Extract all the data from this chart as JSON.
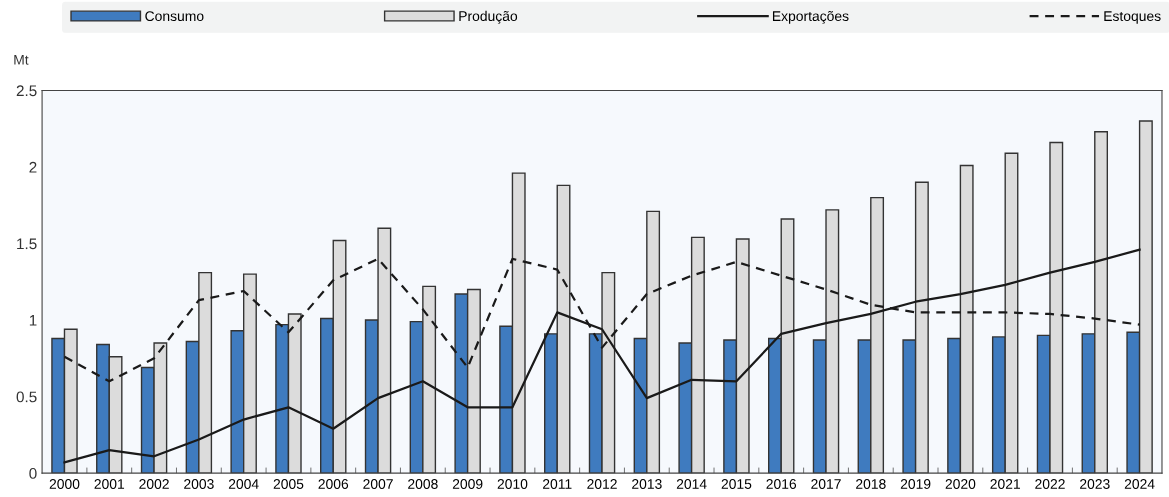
{
  "chart_data": {
    "type": "bar",
    "ylabel": "Mt",
    "categories": [
      "2000",
      "2001",
      "2002",
      "2003",
      "2004",
      "2005",
      "2006",
      "2007",
      "2008",
      "2009",
      "2010",
      "2011",
      "2012",
      "2013",
      "2014",
      "2015",
      "2016",
      "2017",
      "2018",
      "2019",
      "2020",
      "2021",
      "2022",
      "2023",
      "2024"
    ],
    "series": [
      {
        "name": "Consumo",
        "color": "#3f7bbf",
        "values": [
          0.88,
          0.84,
          0.69,
          0.86,
          0.93,
          0.97,
          1.01,
          1.0,
          0.99,
          1.17,
          0.96,
          0.91,
          0.91,
          0.88,
          0.85,
          0.87,
          0.88,
          0.87,
          0.87,
          0.87,
          0.88,
          0.89,
          0.9,
          0.91,
          0.92
        ]
      },
      {
        "name": "Produção",
        "color": "#dcdcdc",
        "values": [
          0.94,
          0.76,
          0.85,
          1.31,
          1.3,
          1.04,
          1.52,
          1.6,
          1.22,
          1.2,
          1.96,
          1.88,
          1.31,
          1.71,
          1.54,
          1.53,
          1.66,
          1.72,
          1.8,
          1.9,
          2.01,
          2.09,
          2.16,
          2.23,
          2.3
        ]
      },
      {
        "name": "Exportações",
        "type": "line",
        "line_style": "solid",
        "color": "#1a1a1a",
        "values": [
          0.07,
          0.15,
          0.11,
          0.22,
          0.35,
          0.43,
          0.29,
          0.49,
          0.6,
          0.43,
          0.43,
          1.05,
          0.94,
          0.49,
          0.61,
          0.6,
          0.91,
          0.98,
          1.04,
          1.12,
          1.17,
          1.23,
          1.31,
          1.38,
          1.46
        ]
      },
      {
        "name": "Estoques",
        "type": "line",
        "line_style": "dashed",
        "color": "#1a1a1a",
        "values": [
          0.76,
          0.6,
          0.75,
          1.13,
          1.19,
          0.92,
          1.26,
          1.4,
          1.07,
          0.69,
          1.4,
          1.33,
          0.82,
          1.17,
          1.29,
          1.38,
          1.29,
          1.2,
          1.1,
          1.05,
          1.05,
          1.05,
          1.04,
          1.01,
          0.97
        ]
      }
    ],
    "ylim": [
      0,
      2.5
    ],
    "yticks": [
      0,
      0.5,
      1,
      1.5,
      2,
      2.5
    ],
    "grid": false,
    "legend": "top"
  }
}
